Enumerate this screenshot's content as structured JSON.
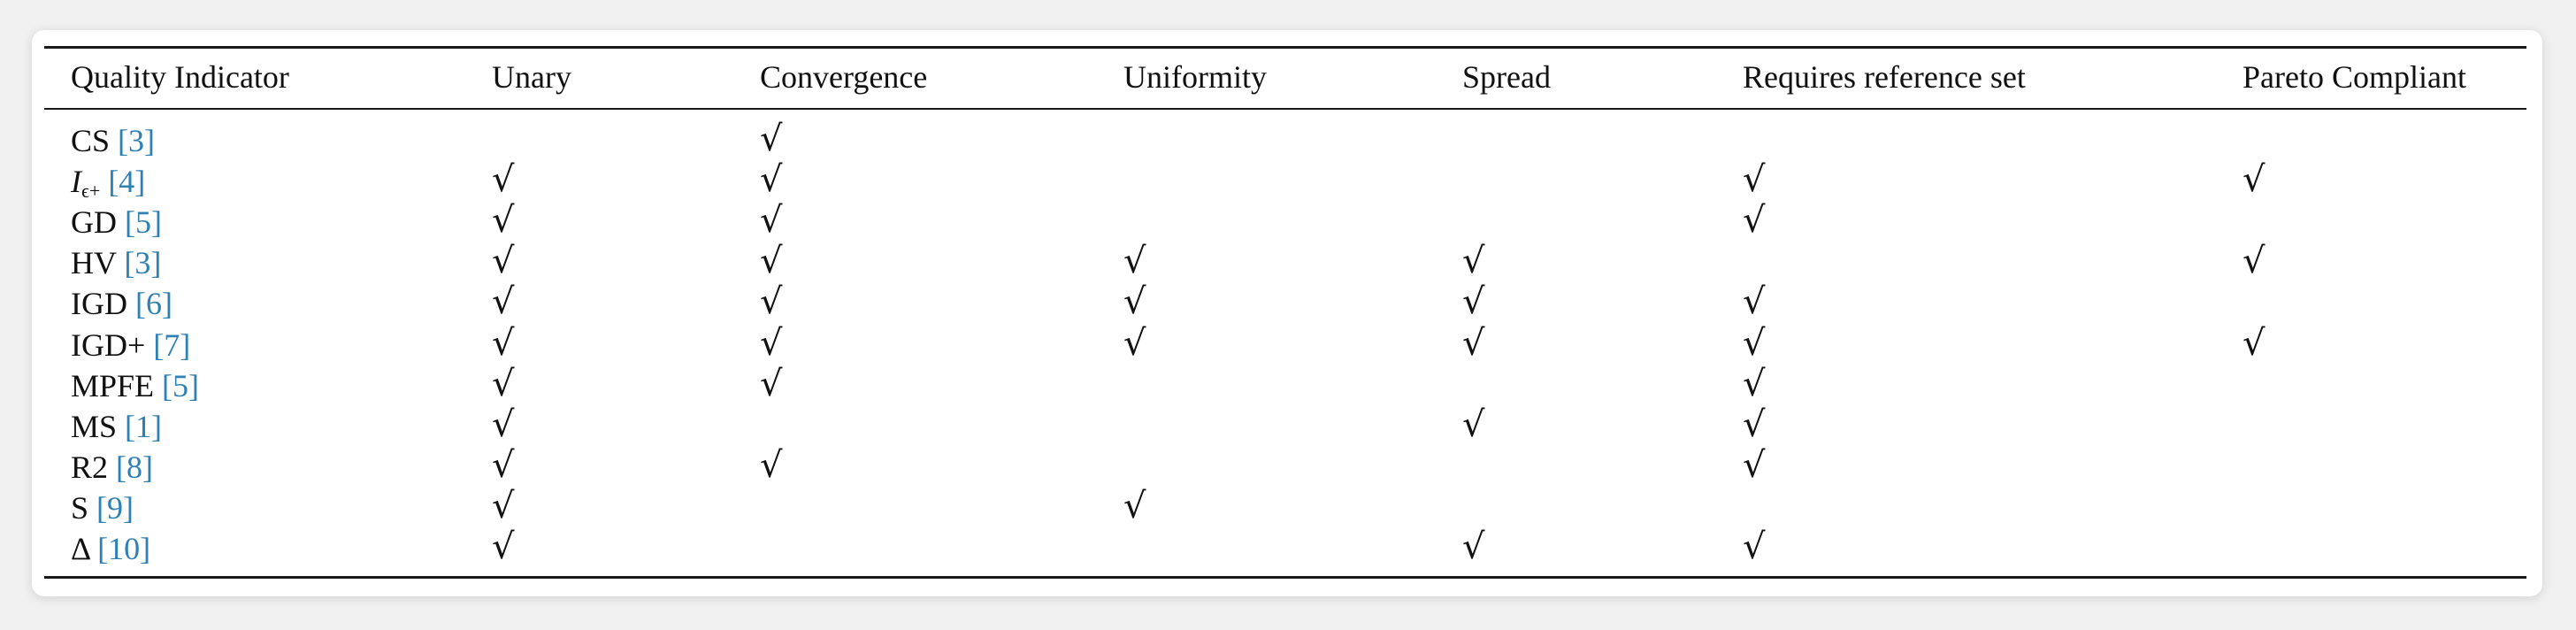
{
  "table": {
    "headers": [
      "Quality Indicator",
      "Unary",
      "Convergence",
      "Uniformity",
      "Spread",
      "Requires reference set",
      "Pareto Compliant"
    ],
    "check_symbol": "√",
    "rows": [
      {
        "name": "CS",
        "cite": "[3]",
        "checks": [
          false,
          true,
          false,
          false,
          false,
          false
        ]
      },
      {
        "name": "I",
        "subscript": "ϵ+",
        "cite": "[4]",
        "checks": [
          true,
          true,
          false,
          false,
          true,
          true
        ]
      },
      {
        "name": "GD",
        "cite": "[5]",
        "checks": [
          true,
          true,
          false,
          false,
          true,
          false
        ]
      },
      {
        "name": "HV",
        "cite": "[3]",
        "checks": [
          true,
          true,
          true,
          true,
          false,
          true
        ]
      },
      {
        "name": "IGD",
        "cite": "[6]",
        "checks": [
          true,
          true,
          true,
          true,
          true,
          false
        ]
      },
      {
        "name": "IGD+",
        "cite": "[7]",
        "checks": [
          true,
          true,
          true,
          true,
          true,
          true
        ]
      },
      {
        "name": "MPFE",
        "cite": "[5]",
        "checks": [
          true,
          true,
          false,
          false,
          true,
          false
        ]
      },
      {
        "name": "MS",
        "cite": "[1]",
        "checks": [
          true,
          false,
          false,
          true,
          true,
          false
        ]
      },
      {
        "name": "R2",
        "cite": "[8]",
        "checks": [
          true,
          true,
          false,
          false,
          true,
          false
        ]
      },
      {
        "name": "S",
        "cite": "[9]",
        "checks": [
          true,
          false,
          true,
          false,
          false,
          false
        ]
      },
      {
        "name": "Δ",
        "cite": "[10]",
        "checks": [
          true,
          false,
          false,
          true,
          true,
          false
        ]
      }
    ]
  }
}
